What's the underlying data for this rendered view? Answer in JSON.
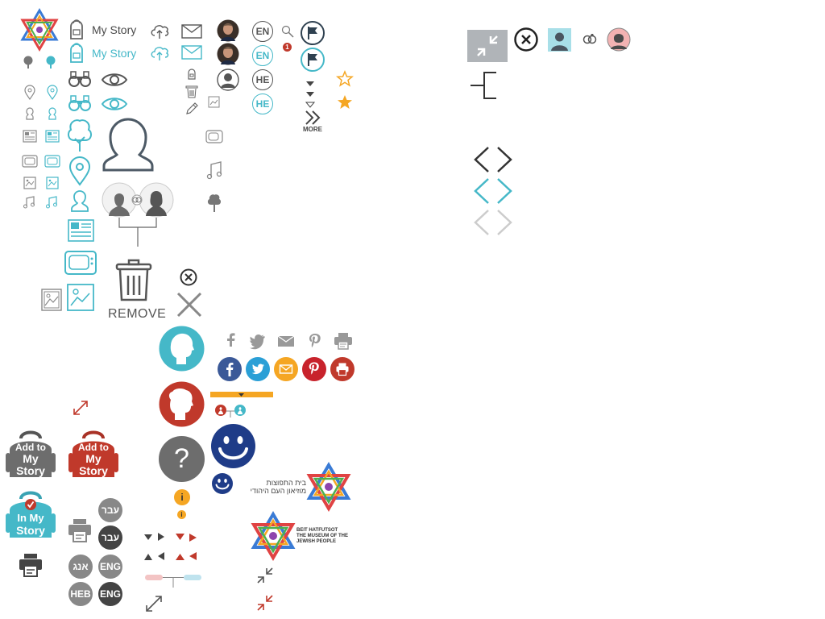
{
  "labels": {
    "my_story": "My Story",
    "my_story_active": "My Story",
    "remove": "REMOVE",
    "more": "MORE"
  },
  "languages": {
    "en": "EN",
    "he": "HE",
    "ivrit": "עבר",
    "eng": "ENG",
    "anglit": "אנג",
    "heb": "HEB"
  },
  "notification_count": "1",
  "backpacks": {
    "add_line1": "Add to",
    "add_line2": "My",
    "add_line3": "Story",
    "in_line1": "In My",
    "in_line2": "Story"
  },
  "logo": {
    "he_line1": "בית התפוצות",
    "he_line2": "מוזיאון העם היהודי",
    "en_line1": "BEIT HATFUTSOT",
    "en_line2": "THE MUSEUM OF THE",
    "en_line3": "JEWISH PEOPLE"
  },
  "info_glyph": "i",
  "help_glyph": "?",
  "colors": {
    "grey": "#6d6d6d",
    "teal": "#45b8c8",
    "red": "#c0392b",
    "orange": "#f5a623",
    "navy": "#1f3c88",
    "facebook": "#3b5998",
    "twitter": "#2a9fd6",
    "mail": "#f5a623",
    "pinterest": "#c8232c",
    "print": "#c0392b"
  },
  "icons": [
    "star-of-david-icon",
    "tree-icon",
    "map-pin-icon",
    "person-icon",
    "newspaper-icon",
    "tv-icon",
    "image-icon",
    "music-icon",
    "backpack-icon",
    "binoculars-icon",
    "eye-icon",
    "cloud-upload-icon",
    "mail-icon",
    "trash-icon",
    "pencil-icon",
    "flag-icon",
    "search-icon",
    "star-icon",
    "close-icon",
    "fullscreen-icon",
    "chevron-icon",
    "facebook-icon",
    "twitter-icon",
    "pinterest-icon",
    "print-icon",
    "smiley-icon"
  ]
}
